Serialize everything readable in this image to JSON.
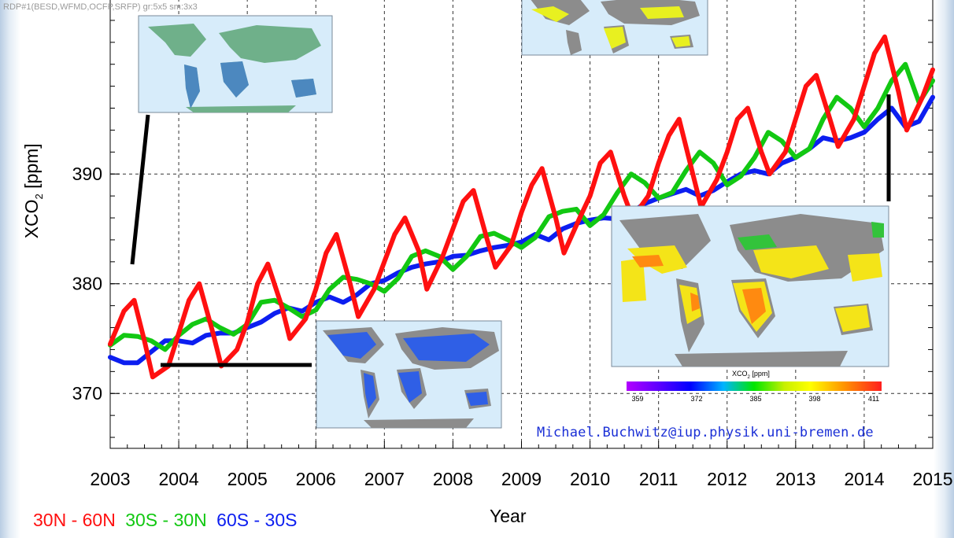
{
  "header_note": "RDP#1(BESD,WFMD,OCFP,SRFP) gr:5x5 sm:3x3",
  "email": "Michael.Buchwitz@iup.physik.uni-bremen.de",
  "colors": {
    "red": "#ff1010",
    "green": "#12c812",
    "blue": "#0c1ef0",
    "grid": "#333333",
    "map_ocean": "#d7ecfa",
    "map_land": "#8c8c8c"
  },
  "chart_data": {
    "type": "line",
    "xlabel": "Year",
    "ylabel_main": "XCO",
    "ylabel_sub": "2",
    "ylabel_unit": " [ppm]",
    "xlim": [
      2003,
      2015
    ],
    "ylim": [
      365,
      406
    ],
    "x_ticks": [
      "2003",
      "2004",
      "2005",
      "2006",
      "2007",
      "2008",
      "2009",
      "2010",
      "2011",
      "2012",
      "2013",
      "2014",
      "2015"
    ],
    "y_ticks": [
      "370",
      "380",
      "390"
    ],
    "grid": true,
    "legend_position": "bottom-left",
    "series": [
      {
        "name": "30N - 60N",
        "color": "#ff1010",
        "x": [
          2003.0,
          2003.2,
          2003.35,
          2003.5,
          2003.62,
          2003.85,
          2004.0,
          2004.15,
          2004.3,
          2004.5,
          2004.62,
          2004.85,
          2005.0,
          2005.15,
          2005.3,
          2005.5,
          2005.62,
          2005.85,
          2006.0,
          2006.15,
          2006.3,
          2006.5,
          2006.62,
          2006.85,
          2007.0,
          2007.15,
          2007.3,
          2007.5,
          2007.62,
          2007.85,
          2008.0,
          2008.15,
          2008.3,
          2008.5,
          2008.62,
          2008.85,
          2009.0,
          2009.15,
          2009.3,
          2009.5,
          2009.62,
          2009.85,
          2010.0,
          2010.15,
          2010.3,
          2010.5,
          2010.62,
          2010.85,
          2011.0,
          2011.15,
          2011.3,
          2011.5,
          2011.62,
          2011.85,
          2012.0,
          2012.15,
          2012.3,
          2012.5,
          2012.62,
          2012.85,
          2013.0,
          2013.15,
          2013.3,
          2013.5,
          2013.62,
          2013.85,
          2014.0,
          2014.15,
          2014.3,
          2014.5,
          2014.62,
          2014.85,
          2015.0
        ],
        "values": [
          374.5,
          377.5,
          378.5,
          374.8,
          371.5,
          372.5,
          375.5,
          378.5,
          380.0,
          375.5,
          372.5,
          374.0,
          376.5,
          380.0,
          381.8,
          378.0,
          375.0,
          376.8,
          379.5,
          382.8,
          384.5,
          380.0,
          377.0,
          379.5,
          382.0,
          384.5,
          386.0,
          383.0,
          379.5,
          382.5,
          385.0,
          387.5,
          388.5,
          384.0,
          381.5,
          383.5,
          386.5,
          389.0,
          390.5,
          386.0,
          382.8,
          386.0,
          388.0,
          391.0,
          392.0,
          388.0,
          386.0,
          388.0,
          391.0,
          393.5,
          395.0,
          390.0,
          387.0,
          389.5,
          392.0,
          395.0,
          396.0,
          392.0,
          390.0,
          392.0,
          395.0,
          398.0,
          399.0,
          395.0,
          392.5,
          395.0,
          398.0,
          401.0,
          402.5,
          397.5,
          394.0,
          397.0,
          399.5
        ]
      },
      {
        "name": "30S - 30N",
        "color": "#12c812",
        "x": [
          2003.0,
          2003.2,
          2003.4,
          2003.6,
          2003.8,
          2004.0,
          2004.2,
          2004.4,
          2004.6,
          2004.8,
          2005.0,
          2005.2,
          2005.4,
          2005.6,
          2005.8,
          2006.0,
          2006.2,
          2006.4,
          2006.6,
          2006.8,
          2007.0,
          2007.2,
          2007.4,
          2007.6,
          2007.8,
          2008.0,
          2008.2,
          2008.4,
          2008.6,
          2008.8,
          2009.0,
          2009.2,
          2009.4,
          2009.6,
          2009.8,
          2010.0,
          2010.2,
          2010.4,
          2010.6,
          2010.8,
          2011.0,
          2011.2,
          2011.4,
          2011.6,
          2011.8,
          2012.0,
          2012.2,
          2012.4,
          2012.6,
          2012.8,
          2013.0,
          2013.2,
          2013.4,
          2013.6,
          2013.8,
          2014.0,
          2014.2,
          2014.4,
          2014.6,
          2014.8,
          2015.0
        ],
        "values": [
          374.4,
          375.3,
          375.2,
          374.8,
          374.0,
          375.3,
          376.3,
          376.8,
          376.0,
          375.4,
          376.3,
          378.3,
          378.5,
          377.8,
          377.0,
          377.6,
          379.5,
          380.6,
          380.4,
          380.0,
          379.3,
          380.5,
          382.5,
          383.0,
          382.5,
          381.3,
          382.5,
          384.3,
          384.6,
          384.0,
          383.3,
          384.2,
          386.1,
          386.6,
          386.8,
          385.3,
          386.3,
          388.3,
          390.0,
          389.2,
          387.8,
          388.3,
          390.3,
          392.0,
          391.0,
          389.0,
          389.8,
          391.5,
          393.8,
          393.0,
          391.5,
          392.3,
          395.0,
          397.0,
          396.0,
          394.3,
          396.0,
          398.5,
          400.0,
          396.5,
          398.5
        ]
      },
      {
        "name": "60S - 30S",
        "color": "#0c1ef0",
        "x": [
          2003.0,
          2003.2,
          2003.4,
          2003.6,
          2003.8,
          2004.0,
          2004.2,
          2004.4,
          2004.6,
          2004.8,
          2005.0,
          2005.2,
          2005.4,
          2005.6,
          2005.8,
          2006.0,
          2006.2,
          2006.4,
          2006.6,
          2006.8,
          2007.0,
          2007.2,
          2007.4,
          2007.6,
          2007.8,
          2008.0,
          2008.2,
          2008.4,
          2008.6,
          2008.8,
          2009.0,
          2009.2,
          2009.4,
          2009.6,
          2009.8,
          2010.0,
          2010.2,
          2010.4,
          2010.6,
          2010.8,
          2011.0,
          2011.2,
          2011.4,
          2011.6,
          2011.8,
          2012.0,
          2012.2,
          2012.4,
          2012.6,
          2012.8,
          2013.0,
          2013.2,
          2013.4,
          2013.6,
          2013.8,
          2014.0,
          2014.2,
          2014.4,
          2014.6,
          2014.8,
          2015.0
        ],
        "values": [
          373.3,
          372.8,
          372.8,
          373.8,
          374.8,
          374.8,
          374.6,
          375.3,
          375.5,
          375.5,
          376.0,
          376.5,
          377.3,
          377.8,
          377.5,
          378.3,
          378.8,
          378.3,
          379.0,
          380.0,
          380.3,
          381.0,
          381.5,
          381.8,
          382.0,
          382.5,
          382.6,
          383.0,
          383.3,
          383.5,
          383.8,
          384.5,
          384.0,
          385.0,
          385.5,
          385.8,
          386.0,
          385.9,
          386.5,
          387.3,
          387.8,
          388.2,
          388.6,
          388.0,
          388.5,
          389.3,
          390.0,
          390.3,
          390.0,
          391.0,
          391.5,
          392.3,
          393.3,
          393.0,
          393.3,
          393.8,
          395.0,
          396.0,
          394.3,
          394.8,
          397.0
        ]
      }
    ],
    "colorbar": {
      "title_main": "XCO",
      "title_sub": "2",
      "title_unit": " [ppm]",
      "ticks": [
        "359",
        "372",
        "385",
        "398",
        "411"
      ]
    }
  }
}
